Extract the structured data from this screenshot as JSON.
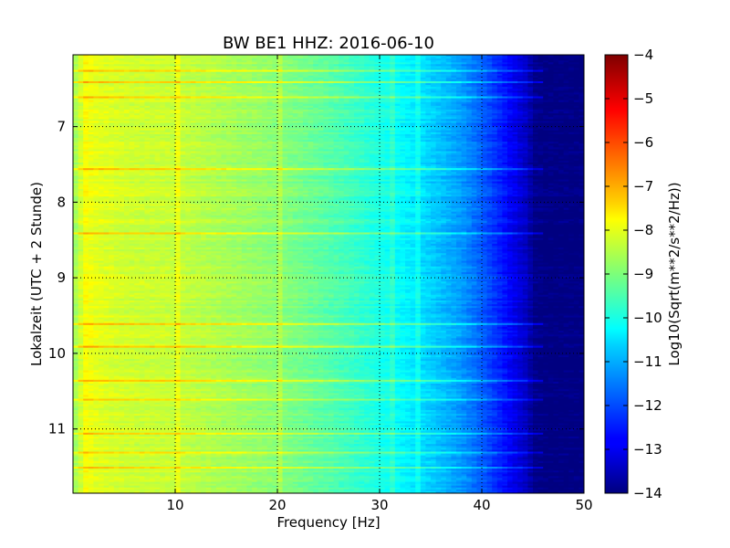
{
  "chart_data": {
    "type": "heatmap",
    "title": "BW BE1 HHZ: 2016-06-10",
    "xlabel": "Frequency [Hz]",
    "ylabel": "Lokalzeit (UTC + 2 Stunde)",
    "xlim": [
      0,
      50
    ],
    "ylim": [
      11.85,
      6.05
    ],
    "y_inverted": true,
    "x_ticks": [
      10,
      20,
      30,
      40,
      50
    ],
    "y_ticks": [
      7,
      8,
      9,
      10,
      11
    ],
    "grid": true,
    "colormap": "jet",
    "colorbar": {
      "label": "Log10(Sqrt(m**2/s**2/Hz))",
      "range": [
        -14,
        -4
      ],
      "ticks": [
        -4,
        -5,
        -6,
        -7,
        -8,
        -9,
        -10,
        -11,
        -12,
        -13,
        -14
      ]
    },
    "spectral_profile": {
      "frequency_hz": [
        0,
        1,
        2,
        5,
        10,
        15,
        20,
        25,
        30,
        33,
        36,
        38,
        40,
        42,
        44,
        45,
        46,
        50
      ],
      "log10_amplitude": [
        -8.6,
        -7.8,
        -8.0,
        -8.2,
        -8.3,
        -8.6,
        -8.9,
        -9.4,
        -10.0,
        -10.4,
        -10.9,
        -11.3,
        -11.9,
        -12.6,
        -13.3,
        -13.9,
        -14.0,
        -14.0
      ]
    },
    "persistent_lines_hz": [
      10,
      20,
      31,
      33.5
    ],
    "noisy_time_bands_hours": [
      6.25,
      6.4,
      6.6,
      7.55,
      8.4,
      9.6,
      9.9,
      10.35,
      10.6,
      11.05,
      11.3,
      11.5
    ]
  },
  "colors": {
    "background": "#ffffff",
    "axes": "#000000",
    "grid": "#000000"
  }
}
